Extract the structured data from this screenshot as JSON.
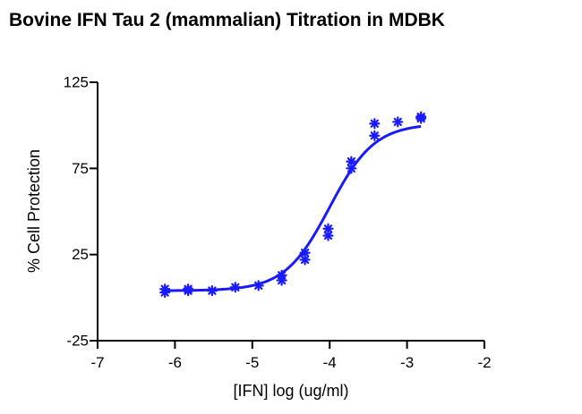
{
  "chart_data": {
    "type": "scatter",
    "title": "Bovine IFN Tau 2 (mammalian) Titration in MDBK",
    "xlabel": "[IFN] log (ug/ml)",
    "ylabel": "% Cell Protection",
    "xlim": [
      -7,
      -2
    ],
    "ylim": [
      -25,
      125
    ],
    "x_ticks": [
      -7,
      -6,
      -5,
      -4,
      -3,
      -2
    ],
    "x_tick_labels": [
      "-7",
      "-6",
      "-5",
      "-4",
      "-3",
      "-2"
    ],
    "y_ticks": [
      -25,
      25,
      75,
      125
    ],
    "y_tick_labels": [
      "-25",
      "25",
      "75",
      "125"
    ],
    "grid": false,
    "color": "#1a1aff",
    "marker": "asterisk",
    "series": [
      {
        "x": [
          -6.13,
          -6.13,
          -5.83,
          -5.83,
          -5.52,
          -5.22,
          -4.92,
          -4.62,
          -4.62,
          -4.32,
          -4.32,
          -4.02,
          -4.02,
          -3.72,
          -3.72,
          -3.42,
          -3.42,
          -3.12,
          -2.82,
          -2.82
        ],
        "y": [
          3.0,
          5.0,
          4.0,
          5.0,
          4.0,
          6.0,
          7.0,
          10.0,
          13.0,
          22.0,
          26.0,
          36.0,
          40.0,
          75.0,
          79.0,
          94.0,
          101.0,
          102.0,
          104.0,
          105.0
        ]
      }
    ],
    "fit": {
      "bottom": 4,
      "top": 101,
      "logEC50": -4.0,
      "hill": 1.5,
      "x_range": [
        -6.15,
        -2.82
      ]
    }
  }
}
